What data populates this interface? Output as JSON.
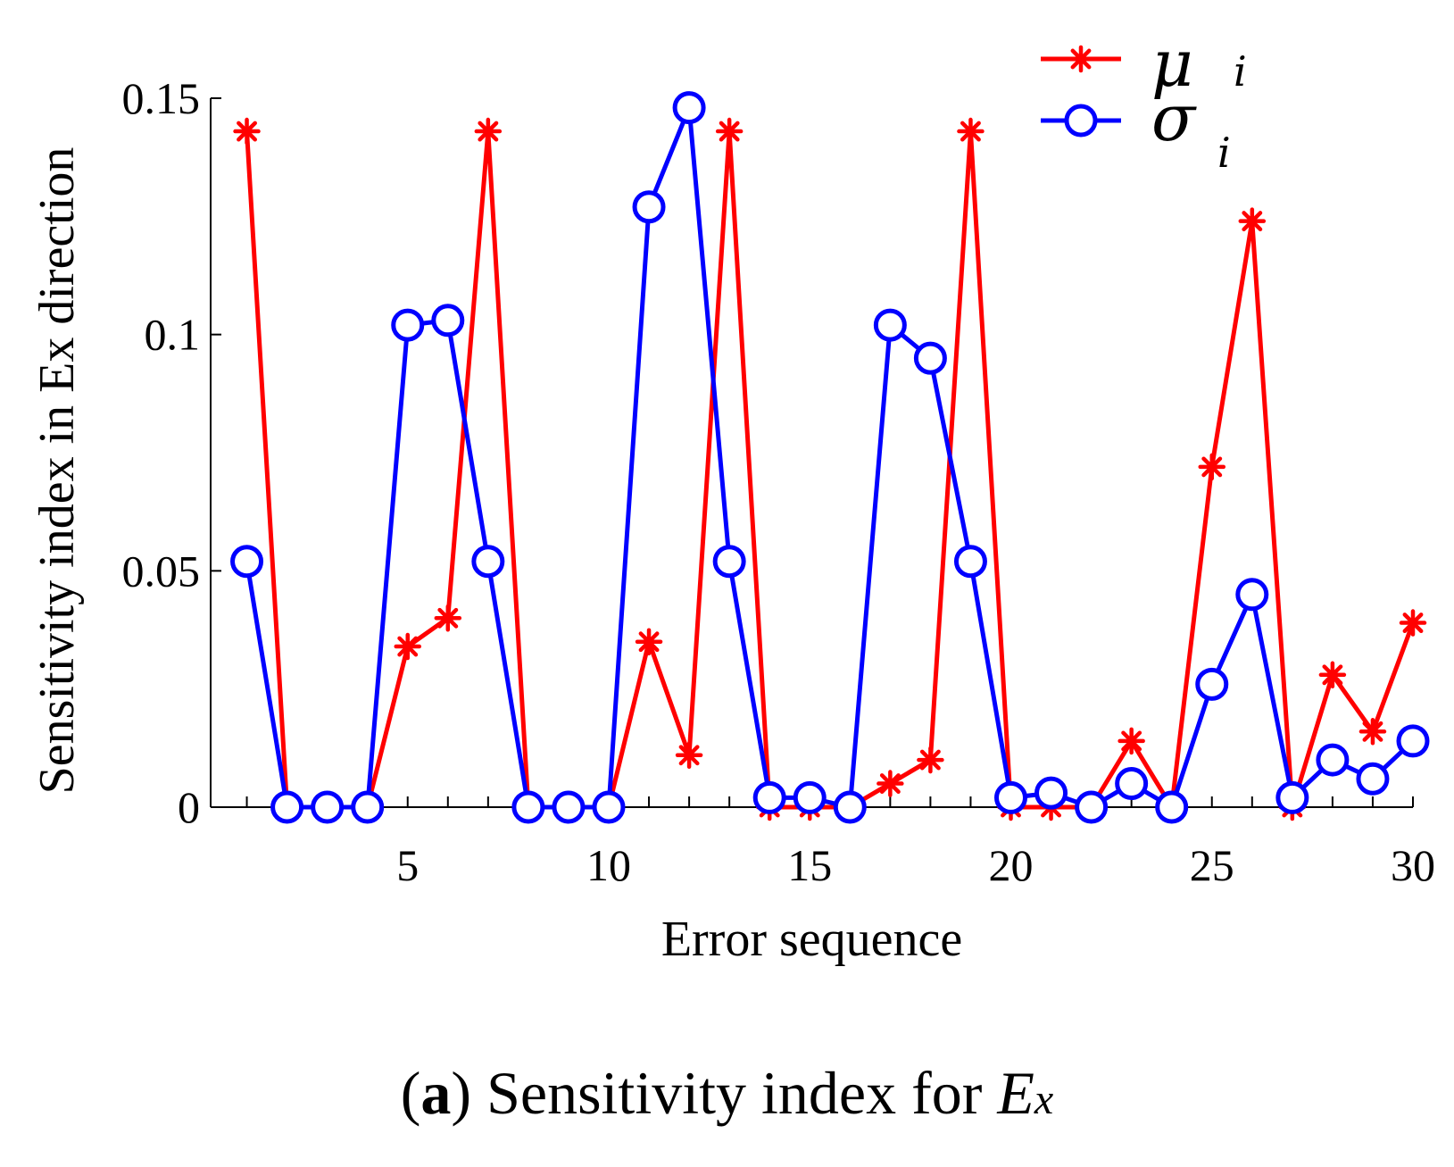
{
  "chart_data": {
    "type": "line",
    "xlabel": "Error sequence",
    "ylabel": "Sensitivity index in Ex direction",
    "xlim": [
      0.1,
      30
    ],
    "ylim": [
      0,
      0.15
    ],
    "x_ticks": [
      5,
      10,
      15,
      20,
      25,
      30
    ],
    "y_ticks": [
      0,
      0.05,
      0.1,
      0.15
    ],
    "y_tick_labels": [
      "0",
      "0.05",
      "0.1",
      "0.15"
    ],
    "x": [
      1,
      2,
      3,
      4,
      5,
      6,
      7,
      8,
      9,
      10,
      11,
      12,
      13,
      14,
      15,
      16,
      17,
      18,
      19,
      20,
      21,
      22,
      23,
      24,
      25,
      26,
      27,
      28,
      29,
      30
    ],
    "series": [
      {
        "name": "mu",
        "symbol": "μ",
        "subscript": "i",
        "color": "#ff0000",
        "marker": "asterisk",
        "values": [
          0.143,
          0,
          0,
          0,
          0.034,
          0.04,
          0.143,
          0,
          0,
          0,
          0.035,
          0.011,
          0.143,
          0,
          0,
          0,
          0.005,
          0.01,
          0.143,
          0,
          0,
          0,
          0.014,
          0,
          0.072,
          0.124,
          0,
          0.028,
          0.016,
          0.039
        ]
      },
      {
        "name": "sigma",
        "symbol": "σ",
        "subscript": "i",
        "color": "#0000ff",
        "marker": "circle",
        "values": [
          0.052,
          0,
          0,
          0,
          0.102,
          0.103,
          0.052,
          0,
          0,
          0,
          0.127,
          0.148,
          0.052,
          0.002,
          0.002,
          0,
          0.102,
          0.095,
          0.052,
          0.002,
          0.003,
          0,
          0.005,
          0,
          0.026,
          0.045,
          0.002,
          0.01,
          0.006,
          0.014
        ]
      }
    ],
    "legend_position": "top-right"
  },
  "caption": {
    "label": "a",
    "text": " Sensitivity index for ",
    "var": "E",
    "var_sub": "x"
  }
}
